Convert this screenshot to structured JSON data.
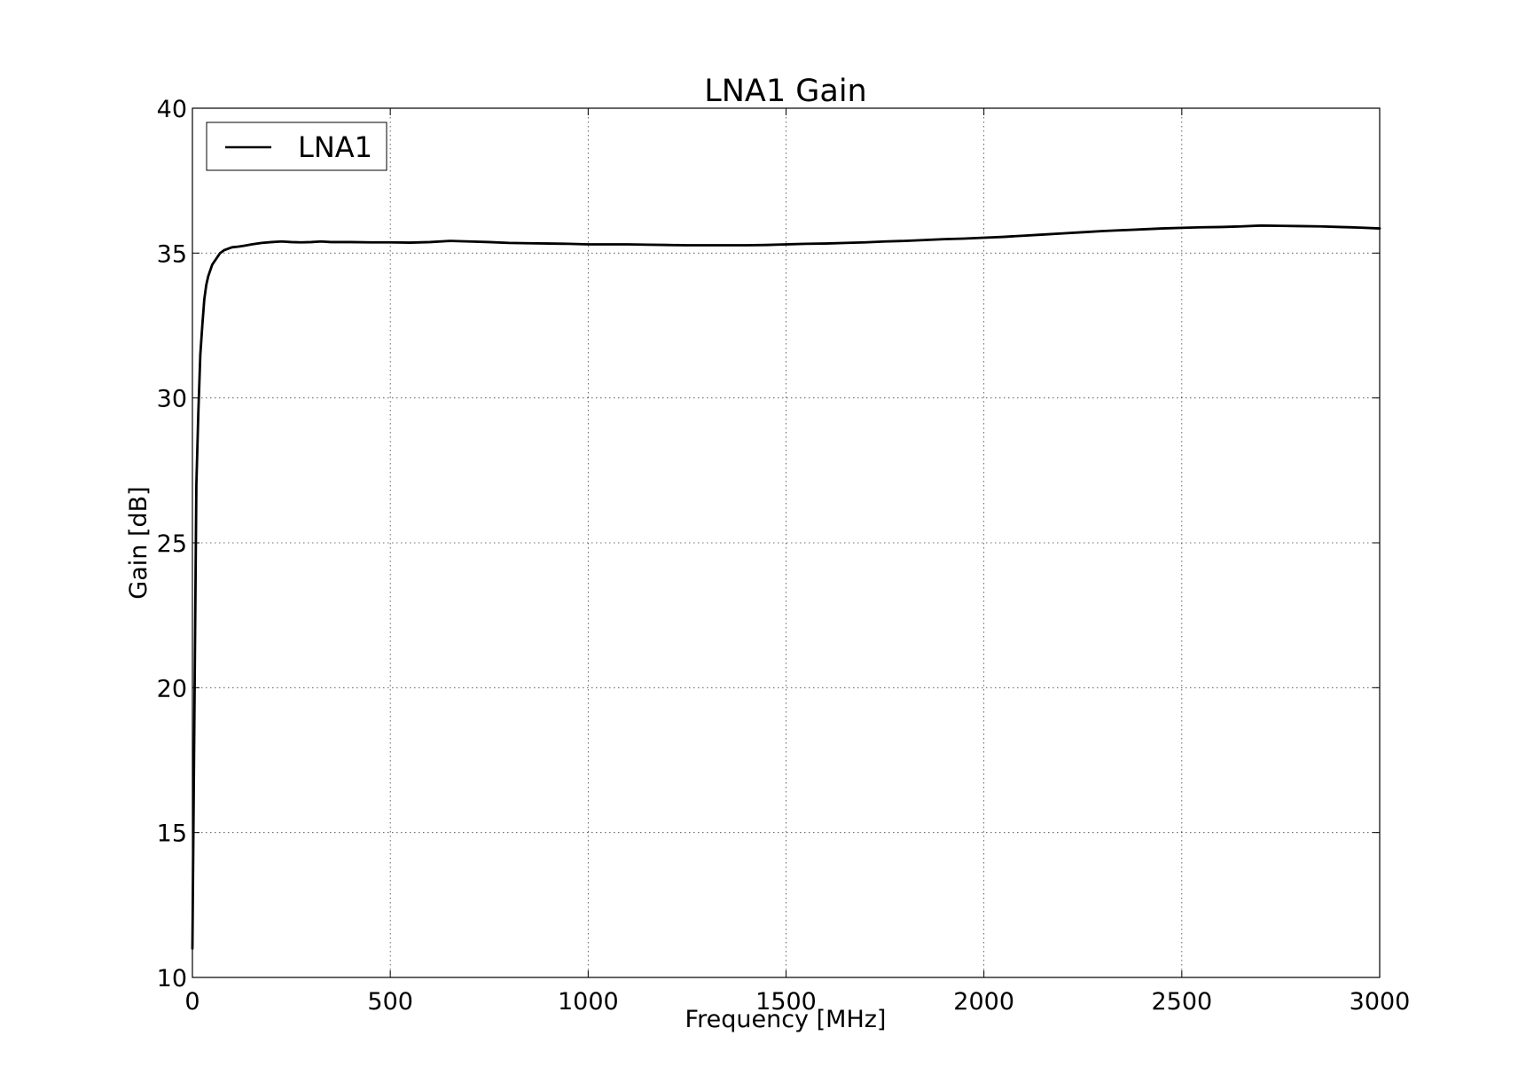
{
  "chart_data": {
    "type": "line",
    "title": "LNA1 Gain",
    "xlabel": "Frequency [MHz]",
    "ylabel": "Gain [dB]",
    "xlim": [
      0,
      3000
    ],
    "ylim": [
      10,
      40
    ],
    "xticks": [
      0,
      500,
      1000,
      1500,
      2000,
      2500,
      3000
    ],
    "xtick_labels": [
      "0",
      "500",
      "1000",
      "1500",
      "2000",
      "2500",
      "3000"
    ],
    "yticks": [
      10,
      15,
      20,
      25,
      30,
      35,
      40
    ],
    "ytick_labels": [
      "10",
      "15",
      "20",
      "25",
      "30",
      "35",
      "40"
    ],
    "grid": true,
    "legend_position": "top-left",
    "series": [
      {
        "name": "LNA1",
        "color": "#000000",
        "x": [
          0,
          5,
          10,
          15,
          20,
          25,
          30,
          35,
          40,
          50,
          60,
          70,
          80,
          90,
          100,
          115,
          130,
          150,
          175,
          200,
          225,
          250,
          275,
          300,
          325,
          350,
          400,
          450,
          500,
          550,
          600,
          650,
          700,
          750,
          800,
          850,
          900,
          950,
          1000,
          1050,
          1100,
          1150,
          1200,
          1250,
          1300,
          1350,
          1400,
          1450,
          1500,
          1550,
          1600,
          1650,
          1700,
          1750,
          1800,
          1850,
          1900,
          1950,
          2000,
          2050,
          2100,
          2150,
          2200,
          2250,
          2300,
          2350,
          2400,
          2450,
          2500,
          2550,
          2600,
          2650,
          2700,
          2750,
          2800,
          2850,
          2900,
          2950,
          3000
        ],
        "y": [
          11.0,
          19.0,
          27.0,
          29.5,
          31.5,
          32.5,
          33.4,
          33.9,
          34.2,
          34.6,
          34.8,
          35.0,
          35.1,
          35.15,
          35.2,
          35.22,
          35.25,
          35.3,
          35.35,
          35.38,
          35.4,
          35.38,
          35.37,
          35.38,
          35.4,
          35.38,
          35.38,
          35.37,
          35.37,
          35.36,
          35.38,
          35.42,
          35.4,
          35.38,
          35.35,
          35.34,
          35.33,
          35.32,
          35.3,
          35.3,
          35.3,
          35.29,
          35.28,
          35.27,
          35.27,
          35.27,
          35.27,
          35.28,
          35.3,
          35.32,
          35.33,
          35.35,
          35.37,
          35.4,
          35.42,
          35.45,
          35.48,
          35.5,
          35.53,
          35.56,
          35.6,
          35.64,
          35.68,
          35.72,
          35.76,
          35.79,
          35.82,
          35.85,
          35.87,
          35.89,
          35.9,
          35.92,
          35.95,
          35.94,
          35.93,
          35.92,
          35.9,
          35.88,
          35.85
        ]
      }
    ]
  }
}
